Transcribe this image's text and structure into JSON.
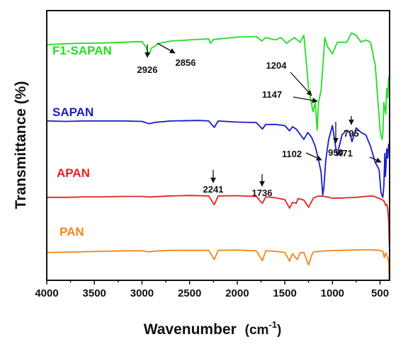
{
  "chart_data": {
    "type": "line",
    "title": "",
    "xlabel": "Wavenumber",
    "xlabel_unit": "(cm",
    "xlabel_sup": "-1",
    "xlabel_close": ")",
    "ylabel": "Transmittance (%)",
    "xlim": [
      4000,
      400
    ],
    "x_reversed": true,
    "y_ticks_shown": false,
    "grid": false,
    "legend": "none",
    "x_ticks": [
      "4000",
      "3500",
      "3000",
      "2500",
      "2000",
      "1500",
      "1000",
      "500"
    ],
    "series": [
      {
        "name": "F1-SAPAN",
        "color": "#22dd22",
        "points": [
          [
            4000,
            95
          ],
          [
            3700,
            95.5
          ],
          [
            3400,
            95.7
          ],
          [
            3200,
            96
          ],
          [
            3000,
            96.3
          ],
          [
            2960,
            94
          ],
          [
            2926,
            90.6
          ],
          [
            2900,
            93.5
          ],
          [
            2856,
            94.5
          ],
          [
            2820,
            95.5
          ],
          [
            2700,
            96.5
          ],
          [
            2500,
            97
          ],
          [
            2300,
            97.5
          ],
          [
            2280,
            95.5
          ],
          [
            2250,
            97.2
          ],
          [
            2000,
            98.2
          ],
          [
            1800,
            98.5
          ],
          [
            1740,
            96.5
          ],
          [
            1700,
            98
          ],
          [
            1600,
            97
          ],
          [
            1540,
            98
          ],
          [
            1480,
            95.5
          ],
          [
            1450,
            96.5
          ],
          [
            1400,
            98
          ],
          [
            1340,
            96
          ],
          [
            1300,
            99
          ],
          [
            1280,
            90
          ],
          [
            1250,
            76
          ],
          [
            1204,
            66
          ],
          [
            1180,
            70
          ],
          [
            1160,
            58
          ],
          [
            1147,
            70
          ],
          [
            1120,
            75
          ],
          [
            1100,
            86
          ],
          [
            1080,
            98
          ],
          [
            1050,
            94
          ],
          [
            1000,
            91
          ],
          [
            950,
            96
          ],
          [
            900,
            96
          ],
          [
            850,
            96
          ],
          [
            800,
            100
          ],
          [
            750,
            99
          ],
          [
            700,
            96
          ],
          [
            650,
            97
          ],
          [
            600,
            96
          ],
          [
            550,
            86
          ],
          [
            500,
            58
          ],
          [
            480,
            54
          ],
          [
            471,
            56
          ],
          [
            460,
            70
          ],
          [
            440,
            65
          ],
          [
            430,
            76
          ],
          [
            420,
            72
          ],
          [
            410,
            81
          ],
          [
            405,
            76
          ],
          [
            400,
            78
          ]
        ]
      },
      {
        "name": "SAPAN",
        "color": "#1a1acc",
        "points": [
          [
            4000,
            62
          ],
          [
            3800,
            61.8
          ],
          [
            3600,
            62
          ],
          [
            3400,
            62
          ],
          [
            3200,
            62
          ],
          [
            3000,
            61.8
          ],
          [
            2926,
            60.8
          ],
          [
            2856,
            61.4
          ],
          [
            2700,
            62
          ],
          [
            2400,
            62.2
          ],
          [
            2300,
            62
          ],
          [
            2241,
            59.2
          ],
          [
            2200,
            62
          ],
          [
            2000,
            61.5
          ],
          [
            1800,
            61.3
          ],
          [
            1736,
            58.5
          ],
          [
            1700,
            60.5
          ],
          [
            1600,
            60.5
          ],
          [
            1500,
            60
          ],
          [
            1450,
            57.7
          ],
          [
            1420,
            59.5
          ],
          [
            1380,
            58.5
          ],
          [
            1300,
            54
          ],
          [
            1260,
            57
          ],
          [
            1220,
            55
          ],
          [
            1180,
            51
          ],
          [
            1140,
            44
          ],
          [
            1120,
            40
          ],
          [
            1102,
            30
          ],
          [
            1090,
            33
          ],
          [
            1070,
            45
          ],
          [
            1040,
            54
          ],
          [
            1000,
            60
          ],
          [
            960,
            49
          ],
          [
            950,
            47
          ],
          [
            940,
            49
          ],
          [
            900,
            56
          ],
          [
            850,
            58
          ],
          [
            820,
            57
          ],
          [
            800,
            54
          ],
          [
            795,
            53
          ],
          [
            780,
            55
          ],
          [
            750,
            59
          ],
          [
            700,
            57
          ],
          [
            650,
            56
          ],
          [
            600,
            51
          ],
          [
            550,
            44
          ],
          [
            510,
            41
          ],
          [
            490,
            31
          ],
          [
            471,
            29
          ],
          [
            460,
            34
          ],
          [
            450,
            48
          ],
          [
            445,
            38
          ],
          [
            440,
            40
          ],
          [
            430,
            50
          ],
          [
            420,
            46
          ],
          [
            410,
            52
          ],
          [
            400,
            50
          ]
        ]
      },
      {
        "name": "APAN",
        "color": "#e42222",
        "points": [
          [
            4000,
            29
          ],
          [
            3800,
            29
          ],
          [
            3600,
            29.2
          ],
          [
            3400,
            29.2
          ],
          [
            3200,
            29.4
          ],
          [
            3000,
            29.4
          ],
          [
            2926,
            29.1
          ],
          [
            2856,
            29.3
          ],
          [
            2700,
            29.6
          ],
          [
            2500,
            29.8
          ],
          [
            2300,
            29.6
          ],
          [
            2241,
            25.8
          ],
          [
            2200,
            29.6
          ],
          [
            2000,
            29.7
          ],
          [
            1800,
            29.4
          ],
          [
            1736,
            26.4
          ],
          [
            1700,
            29.2
          ],
          [
            1600,
            28.8
          ],
          [
            1500,
            28
          ],
          [
            1450,
            24.3
          ],
          [
            1420,
            26.8
          ],
          [
            1380,
            26.4
          ],
          [
            1360,
            28.5
          ],
          [
            1300,
            27.8
          ],
          [
            1250,
            24.7
          ],
          [
            1200,
            28.7
          ],
          [
            1150,
            29.5
          ],
          [
            1100,
            29.5
          ],
          [
            1050,
            29.1
          ],
          [
            1000,
            28.6
          ],
          [
            950,
            28.7
          ],
          [
            900,
            28.7
          ],
          [
            850,
            28.8
          ],
          [
            800,
            28.9
          ],
          [
            750,
            29
          ],
          [
            700,
            29.2
          ],
          [
            650,
            29.4
          ],
          [
            600,
            29.6
          ],
          [
            560,
            29.4
          ],
          [
            520,
            28.7
          ],
          [
            480,
            28
          ],
          [
            460,
            27.5
          ],
          [
            440,
            25.5
          ],
          [
            430,
            26
          ],
          [
            420,
            24
          ],
          [
            410,
            19
          ],
          [
            405,
            12
          ],
          [
            400,
            5
          ]
        ]
      },
      {
        "name": "PAN",
        "color": "#f4851c",
        "points": [
          [
            4000,
            5.2
          ],
          [
            3800,
            5.3
          ],
          [
            3600,
            5.5
          ],
          [
            3400,
            5.7
          ],
          [
            3200,
            5.9
          ],
          [
            3000,
            5.9
          ],
          [
            2926,
            5.4
          ],
          [
            2856,
            5.8
          ],
          [
            2700,
            6.1
          ],
          [
            2500,
            6.1
          ],
          [
            2300,
            6.1
          ],
          [
            2241,
            2.1
          ],
          [
            2200,
            6.1
          ],
          [
            2000,
            6.2
          ],
          [
            1800,
            5.9
          ],
          [
            1736,
            1.6
          ],
          [
            1700,
            5.9
          ],
          [
            1600,
            5.7
          ],
          [
            1500,
            5.2
          ],
          [
            1450,
            1.4
          ],
          [
            1420,
            4.7
          ],
          [
            1370,
            2.1
          ],
          [
            1340,
            5
          ],
          [
            1300,
            5.2
          ],
          [
            1250,
            -0.2
          ],
          [
            1220,
            3.8
          ],
          [
            1200,
            5.4
          ],
          [
            1100,
            5.8
          ],
          [
            1000,
            6
          ],
          [
            900,
            6.1
          ],
          [
            800,
            6.2
          ],
          [
            700,
            6.3
          ],
          [
            600,
            6.3
          ],
          [
            550,
            6.2
          ],
          [
            500,
            6.1
          ],
          [
            470,
            5.5
          ],
          [
            455,
            3
          ],
          [
            440,
            5
          ],
          [
            430,
            4
          ],
          [
            420,
            3
          ],
          [
            410,
            1
          ],
          [
            405,
            -5
          ],
          [
            400,
            -18
          ]
        ]
      }
    ],
    "annotations": [
      {
        "text": "2926",
        "series": "F1-SAPAN"
      },
      {
        "text": "2856",
        "series": "F1-SAPAN"
      },
      {
        "text": "1204",
        "series": "F1-SAPAN"
      },
      {
        "text": "1147",
        "series": "F1-SAPAN"
      },
      {
        "text": "1102",
        "series": "SAPAN"
      },
      {
        "text": "950",
        "series": "SAPAN"
      },
      {
        "text": "795",
        "series": "SAPAN"
      },
      {
        "text": "471",
        "series": "SAPAN"
      },
      {
        "text": "2241",
        "series": "APAN"
      },
      {
        "text": "1736",
        "series": "APAN"
      }
    ]
  }
}
